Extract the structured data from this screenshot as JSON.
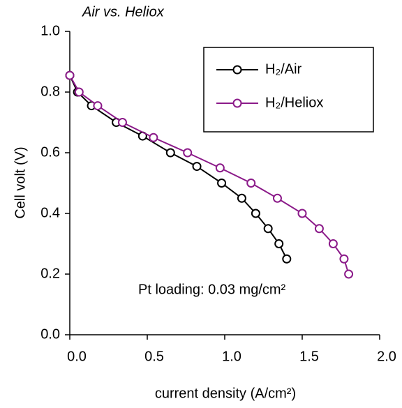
{
  "chart_data": {
    "type": "line",
    "title": "Air vs. Heliox",
    "x_label": "current density (A/cm²)",
    "y_label": "Cell volt (V)",
    "annotation": "Pt loading: 0.03 mg/cm²",
    "xlim": [
      0,
      2
    ],
    "ylim": [
      0,
      1
    ],
    "xticks": [
      {
        "value": 0,
        "label": "0.0"
      },
      {
        "value": 0.5,
        "label": "0.5"
      },
      {
        "value": 1,
        "label": "1.0"
      },
      {
        "value": 1.5,
        "label": "1.5"
      },
      {
        "value": 2,
        "label": "2.0"
      }
    ],
    "yticks": [
      {
        "value": 0,
        "label": "0.0"
      },
      {
        "value": 0.2,
        "label": "0.2"
      },
      {
        "value": 0.4,
        "label": "0.4"
      },
      {
        "value": 0.6,
        "label": "0.6"
      },
      {
        "value": 0.8,
        "label": "0.8"
      },
      {
        "value": 1,
        "label": "1.0"
      }
    ],
    "grid": false,
    "legend": "upper right",
    "series": [
      {
        "name": "H₂/Air",
        "color": "#000000",
        "x": [
          0.0,
          0.05,
          0.14,
          0.3,
          0.47,
          0.65,
          0.82,
          0.98,
          1.11,
          1.2,
          1.28,
          1.35,
          1.4
        ],
        "values": [
          0.855,
          0.8,
          0.755,
          0.7,
          0.655,
          0.6,
          0.555,
          0.5,
          0.45,
          0.4,
          0.35,
          0.3,
          0.25
        ]
      },
      {
        "name": "H₂/Heliox",
        "color": "#8b1a89",
        "x": [
          0.0,
          0.06,
          0.18,
          0.34,
          0.54,
          0.76,
          0.97,
          1.17,
          1.34,
          1.5,
          1.61,
          1.7,
          1.77,
          1.8
        ],
        "values": [
          0.855,
          0.8,
          0.755,
          0.7,
          0.65,
          0.6,
          0.55,
          0.5,
          0.45,
          0.4,
          0.35,
          0.3,
          0.25,
          0.2
        ]
      }
    ]
  }
}
